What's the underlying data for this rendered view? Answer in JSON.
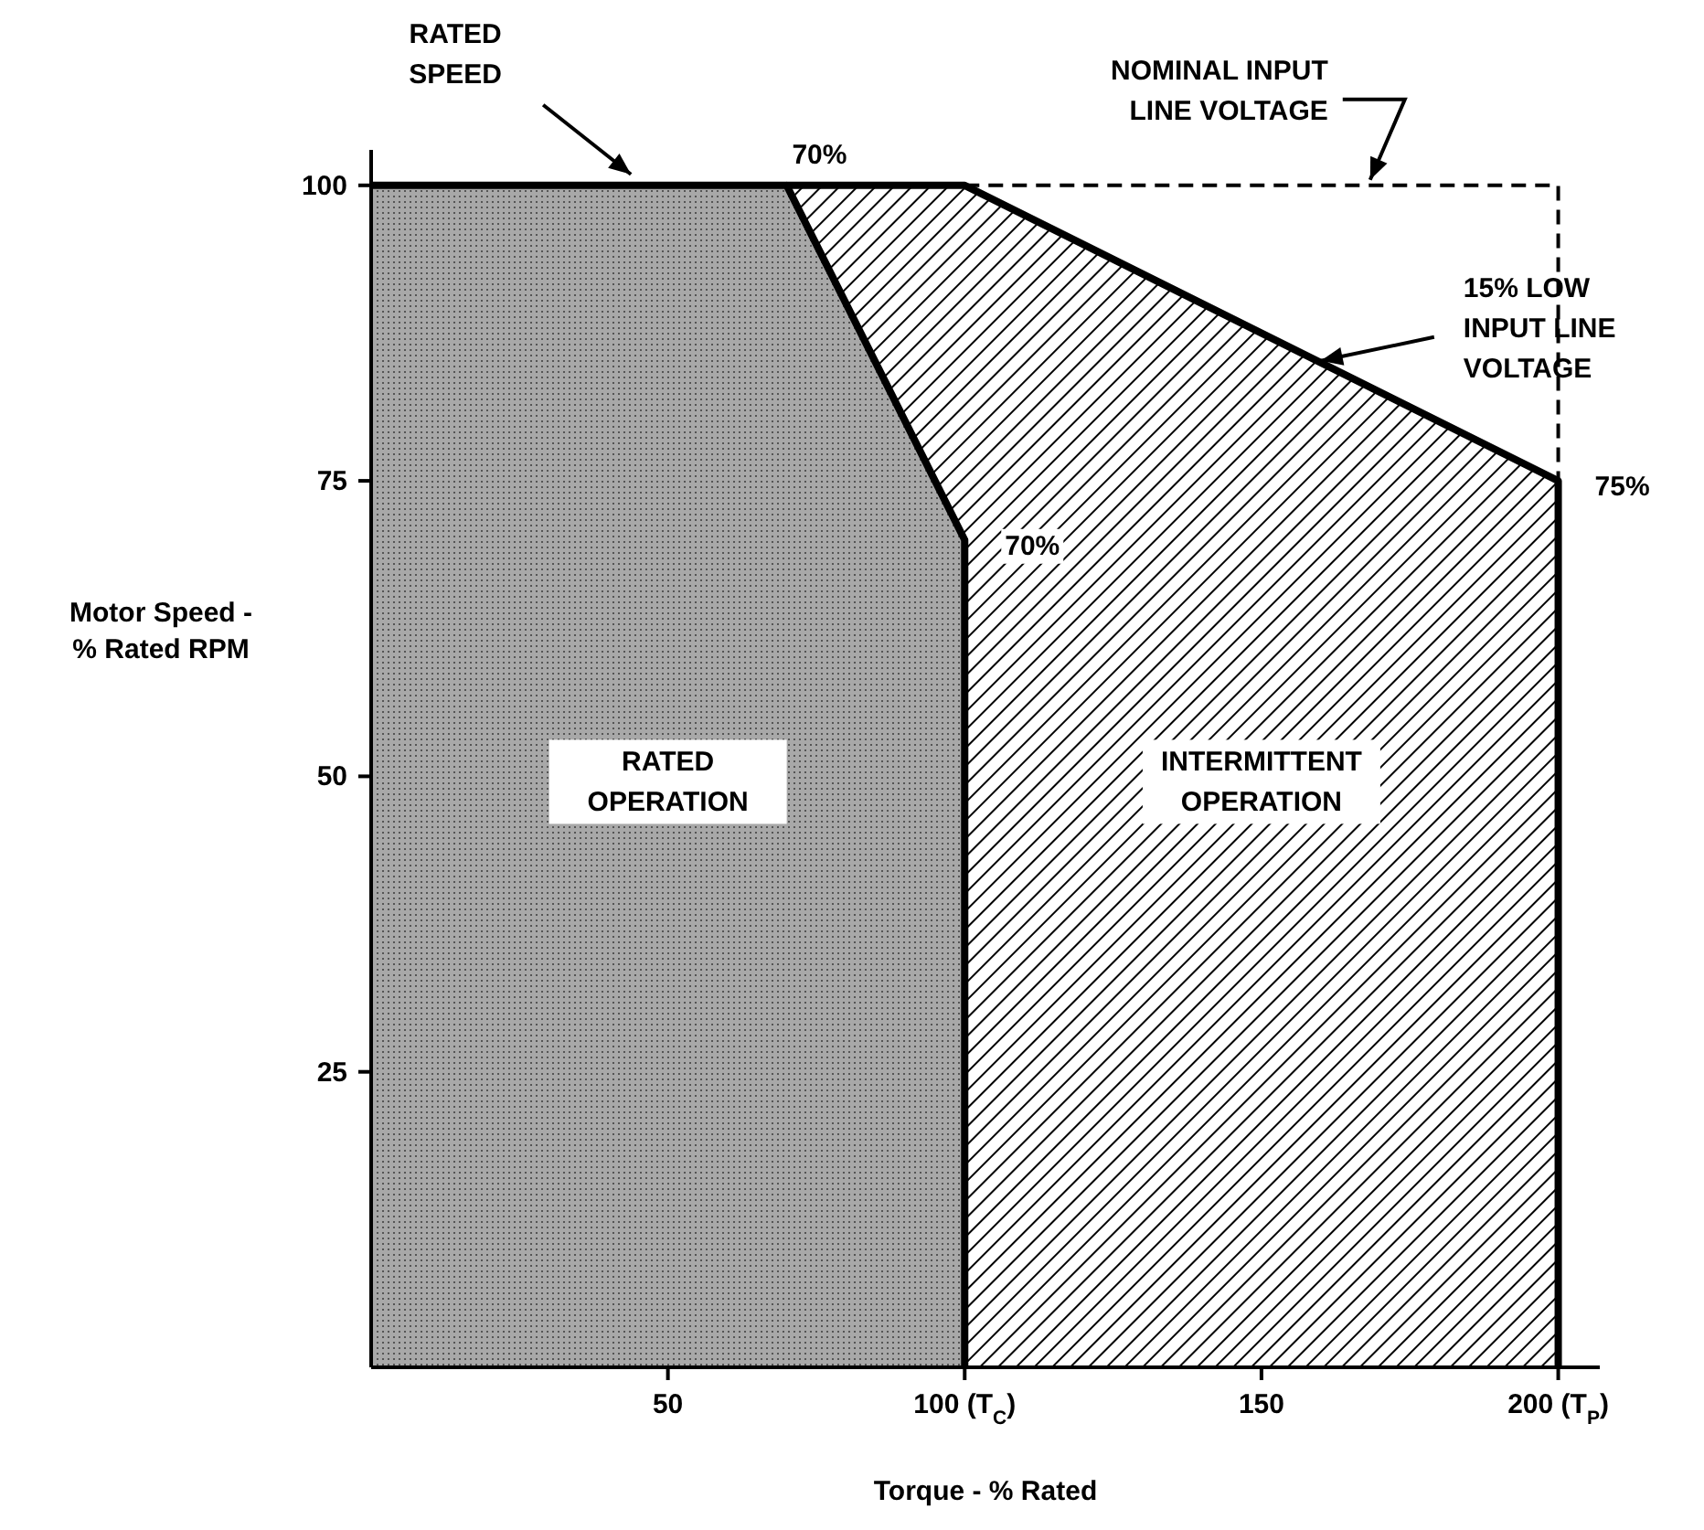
{
  "chart_data": {
    "type": "area",
    "xlabel": "Torque - % Rated",
    "ylabel": "Motor Speed -\n% Rated RPM",
    "xlim": [
      0,
      207
    ],
    "ylim": [
      0,
      103
    ],
    "xticks": [
      50,
      {
        "value": 100,
        "label": "100 (T$_{C}$)"
      },
      150,
      {
        "value": 200,
        "label": "200 (T$_{P}$)"
      }
    ],
    "yticks": [
      25,
      50,
      75,
      100
    ],
    "grid": false,
    "legend": false,
    "series": [
      {
        "name": "INTERMITTENT\nOPERATION",
        "color": "#000000",
        "x": [
          70,
          100,
          200,
          200
        ],
        "values": [
          100,
          100,
          75,
          0
        ]
      },
      {
        "name": "RATED\nOPERATION",
        "color": "#a8a8a8",
        "x": [
          0,
          70,
          100,
          100
        ],
        "values": [
          100,
          100,
          70,
          0
        ]
      },
      {
        "type": "line",
        "color": "#000000",
        "line_style": "dashed",
        "x": [
          100,
          200,
          200
        ],
        "values": [
          100,
          100,
          75
        ]
      }
    ],
    "annotations": [
      "RATED\nSPEED",
      {
        "text": "70%",
        "x": 70,
        "y": 100
      },
      {
        "text": "70%",
        "x": 100,
        "y": 70
      },
      {
        "text": "75%",
        "x": 200,
        "y": 75
      },
      {
        "text": "NOMINAL INPUT\nLINE VOLTAGE",
        "x": 168,
        "y": 100
      },
      {
        "text": "15% LOW\nINPUT LINE\nVOLTAGE",
        "x": 160,
        "y": 85
      }
    ]
  }
}
